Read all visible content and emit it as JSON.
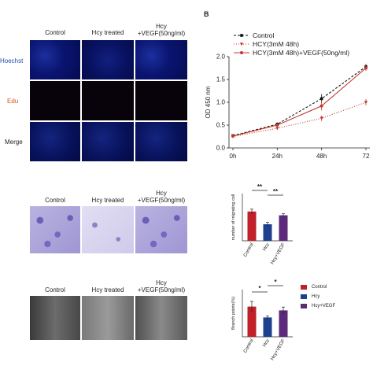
{
  "section_b_label": "B",
  "rows_top": {
    "columns": [
      "Control",
      "Hcy treated",
      "Hcy",
      "+VEGF(50ng/ml)"
    ],
    "row_labels": [
      "Hoechst",
      "Edu",
      "Merge"
    ]
  },
  "row_mid": {
    "columns": [
      "Control",
      "Hcy treated",
      "Hcy",
      "+VEGF(50ng/ml)"
    ]
  },
  "row_bottom": {
    "columns": [
      "Control",
      "Hcy treated",
      "Hcy",
      "+VEGF(50ng/ml)"
    ]
  },
  "colors": {
    "control": "#111111",
    "hcy": "#c0392b",
    "hcy_vegf": "#c0392b",
    "bar_control": "#c0202a",
    "bar_hcy": "#1f3f8f",
    "bar_vegf": "#5b2a7a"
  },
  "chart_data": [
    {
      "type": "line",
      "ylabel": "OD 450 nm",
      "xlabel": "",
      "categories": [
        "0h",
        "24h",
        "48h",
        "72"
      ],
      "ylim": [
        0,
        2.0
      ],
      "yticks": [
        "0.0",
        "0.5",
        "1.0",
        "1.5",
        "2.0"
      ],
      "legend": "top-left",
      "series": [
        {
          "name": "Control",
          "values": [
            0.27,
            0.52,
            1.08,
            1.78
          ]
        },
        {
          "name": "HCY(3mM 48h)",
          "values": [
            0.25,
            0.43,
            0.65,
            1.0
          ]
        },
        {
          "name": "HCY(3mM 48h)+VEGF(50ng/ml)",
          "values": [
            0.26,
            0.5,
            0.92,
            1.75
          ]
        }
      ]
    },
    {
      "type": "bar",
      "ylabel": "number of migrating cell",
      "categories": [
        "Control",
        "Hcy",
        "Hcy+VEGF"
      ],
      "values": [
        620,
        350,
        540
      ],
      "ylim": [
        0,
        1000
      ],
      "yticks": [],
      "significance": [
        "**",
        "**"
      ]
    },
    {
      "type": "bar",
      "ylabel": "Branch points(%)",
      "categories": [
        "Control",
        "Hcy",
        "Hcy+VEGF"
      ],
      "values": [
        128,
        82,
        112
      ],
      "ylim": [
        0,
        200
      ],
      "yticks": [],
      "significance": [
        "*",
        "*"
      ],
      "legend": [
        "Control",
        "Hcy",
        "Hcy+VEGF"
      ]
    }
  ]
}
